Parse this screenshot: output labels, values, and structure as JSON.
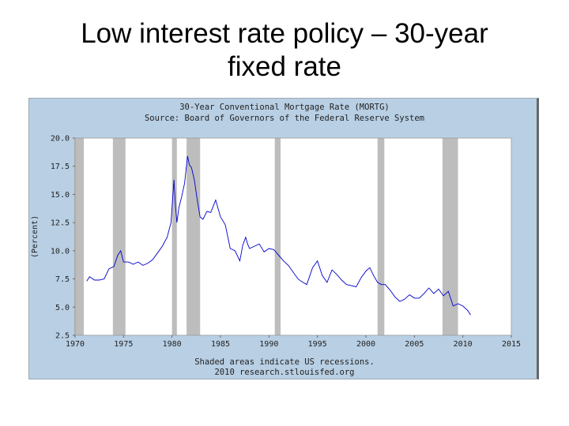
{
  "slide": {
    "title_line1": "Low interest rate policy – 30-year",
    "title_line2": "fixed rate"
  },
  "chart_data": {
    "type": "line",
    "title": "30-Year Conventional Mortgage Rate (MORTG)",
    "subtitle": "Source: Board of Governors of the Federal Reserve System",
    "ylabel": "(Percent)",
    "xlabel": "",
    "footer_line1": "Shaded areas indicate US recessions.",
    "footer_line2": "2010 research.stlouisfed.org",
    "xlim": [
      1970,
      2015
    ],
    "ylim": [
      2.5,
      20.0
    ],
    "x_ticks": [
      1970,
      1975,
      1980,
      1985,
      1990,
      1995,
      2000,
      2005,
      2010,
      2015
    ],
    "y_ticks": [
      "2.5",
      "5.0",
      "7.5",
      "10.0",
      "12.5",
      "15.0",
      "17.5",
      "20.0"
    ],
    "recessions": [
      [
        1969.9,
        1970.9
      ],
      [
        1973.9,
        1975.2
      ],
      [
        1980.0,
        1980.5
      ],
      [
        1981.5,
        1982.9
      ],
      [
        1990.6,
        1991.2
      ],
      [
        2001.2,
        2001.9
      ],
      [
        2007.9,
        2009.5
      ]
    ],
    "line_color": "#0000cc",
    "recession_color": "#bdbdbd",
    "series": [
      {
        "name": "MORTG",
        "x": [
          1971.2,
          1971.5,
          1972.0,
          1972.5,
          1973.0,
          1973.5,
          1974.0,
          1974.4,
          1974.7,
          1975.0,
          1975.5,
          1976.0,
          1976.5,
          1977.0,
          1977.5,
          1978.0,
          1978.5,
          1979.0,
          1979.5,
          1979.9,
          1980.2,
          1980.35,
          1980.5,
          1980.7,
          1981.0,
          1981.3,
          1981.6,
          1981.8,
          1982.0,
          1982.3,
          1982.6,
          1982.9,
          1983.2,
          1983.6,
          1984.0,
          1984.5,
          1985.0,
          1985.5,
          1986.0,
          1986.5,
          1987.0,
          1987.3,
          1987.6,
          1987.8,
          1988.0,
          1988.5,
          1989.0,
          1989.5,
          1990.0,
          1990.5,
          1991.0,
          1991.5,
          1992.0,
          1992.5,
          1993.0,
          1993.5,
          1993.9,
          1994.5,
          1995.0,
          1995.5,
          1996.0,
          1996.5,
          1997.0,
          1997.5,
          1998.0,
          1998.5,
          1999.0,
          1999.5,
          2000.0,
          2000.4,
          2000.8,
          2001.2,
          2001.6,
          2002.0,
          2002.5,
          2003.0,
          2003.5,
          2004.0,
          2004.5,
          2005.0,
          2005.5,
          2006.0,
          2006.5,
          2007.0,
          2007.5,
          2008.0,
          2008.5,
          2009.0,
          2009.5,
          2010.0,
          2010.5,
          2010.8
        ],
        "values": [
          7.3,
          7.7,
          7.4,
          7.4,
          7.5,
          8.4,
          8.6,
          9.6,
          10.0,
          9.0,
          9.0,
          8.8,
          9.0,
          8.7,
          8.9,
          9.2,
          9.8,
          10.4,
          11.2,
          12.5,
          16.3,
          14.0,
          12.5,
          13.8,
          14.8,
          16.0,
          18.4,
          17.6,
          17.4,
          16.3,
          14.5,
          13.0,
          12.8,
          13.5,
          13.4,
          14.5,
          13.0,
          12.3,
          10.2,
          10.0,
          9.1,
          10.5,
          11.2,
          10.6,
          10.2,
          10.4,
          10.6,
          9.9,
          10.2,
          10.1,
          9.6,
          9.1,
          8.7,
          8.1,
          7.5,
          7.2,
          7.0,
          8.5,
          9.1,
          7.8,
          7.2,
          8.3,
          7.9,
          7.4,
          7.0,
          6.9,
          6.8,
          7.6,
          8.2,
          8.5,
          7.8,
          7.2,
          7.0,
          7.0,
          6.5,
          5.9,
          5.5,
          5.7,
          6.1,
          5.8,
          5.8,
          6.2,
          6.7,
          6.2,
          6.6,
          6.0,
          6.4,
          5.1,
          5.3,
          5.1,
          4.7,
          4.3
        ]
      }
    ]
  }
}
